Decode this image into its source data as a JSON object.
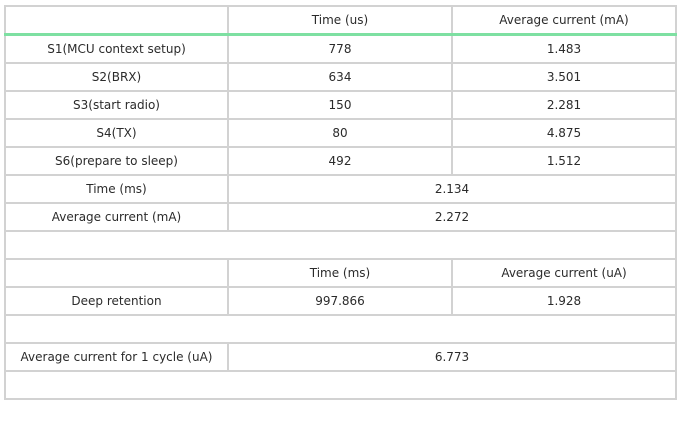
{
  "table": {
    "header": [
      "",
      "Time (us)",
      "Average current (mA)"
    ],
    "stages": [
      {
        "label": "S1(MCU context setup)",
        "time": "778",
        "current": "1.483"
      },
      {
        "label": "S2(BRX)",
        "time": "634",
        "current": "3.501"
      },
      {
        "label": "S3(start radio)",
        "time": "150",
        "current": "2.281"
      },
      {
        "label": "S4(TX)",
        "time": "80",
        "current": "4.875"
      },
      {
        "label": "S6(prepare to sleep)",
        "time": "492",
        "current": "1.512"
      }
    ],
    "summary": [
      {
        "label": "Time (ms)",
        "value": "2.134"
      },
      {
        "label": "Average current (mA)",
        "value": "2.272"
      }
    ],
    "retention_header": [
      "",
      "Time (ms)",
      "Average current (uA)"
    ],
    "retention_row": {
      "label": "Deep retention",
      "time": "997.866",
      "current": "1.928"
    },
    "cycle_row": {
      "label": "Average current for 1 cycle (uA)",
      "value": "6.773"
    }
  }
}
